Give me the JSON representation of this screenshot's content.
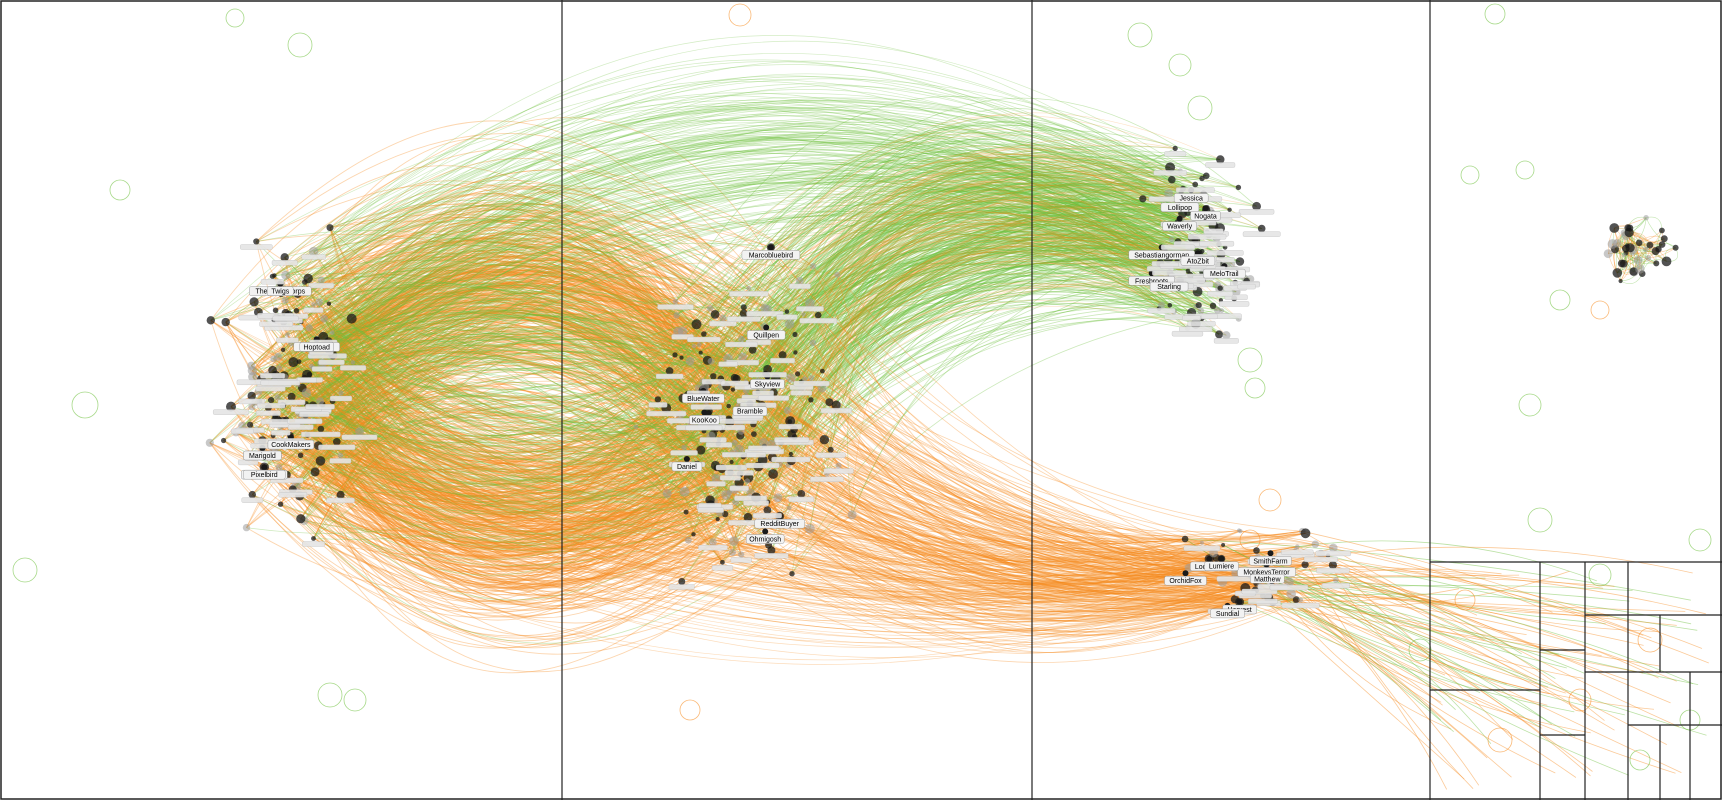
{
  "page": {
    "background": "#ffffff",
    "panel_border_color": "#222222"
  },
  "edge_colors": {
    "group_a": "#6cbf3b",
    "group_b": "#f68a1d"
  },
  "node_colors": {
    "dark": "#1a1a1a",
    "gray": "#9a9a9a",
    "label_bg": "#e4e4e4"
  },
  "clusters": [
    {
      "id": "left-cluster",
      "description_color": "#6cbf3b"
    },
    {
      "id": "center-cluster",
      "description_color": "#f68a1d"
    },
    {
      "id": "right-cluster",
      "description_color": "#6cbf3b"
    },
    {
      "id": "lower-right-cluster",
      "description_color": "#f68a1d"
    },
    {
      "id": "isolated-cluster",
      "description_color": "#9a9a9a"
    }
  ],
  "labels": [
    "RedditBuyer",
    "TheVanityCorps",
    "Sebastiangorman",
    "MonkeysTerror",
    "Daniel",
    "Pancoastal",
    "Lollipop",
    "Harvest",
    "Marcobluebird",
    "Pepperjack",
    "Jessica",
    "SmithFarm",
    "Ohmigosh",
    "Prospero",
    "AtoZbit",
    "Matthew",
    "KooKoo",
    "CookMakers",
    "Freshroots",
    "LocalBuy",
    "BlueWater",
    "Twigs",
    "Nogata",
    "Lumiere",
    "Skyview",
    "Hoptoad",
    "MeloTrail",
    "OrchidFox",
    "Bramble",
    "Pixelbird",
    "Waverly",
    "Sundial",
    "Quillpen",
    "Marigold",
    "Starling"
  ]
}
